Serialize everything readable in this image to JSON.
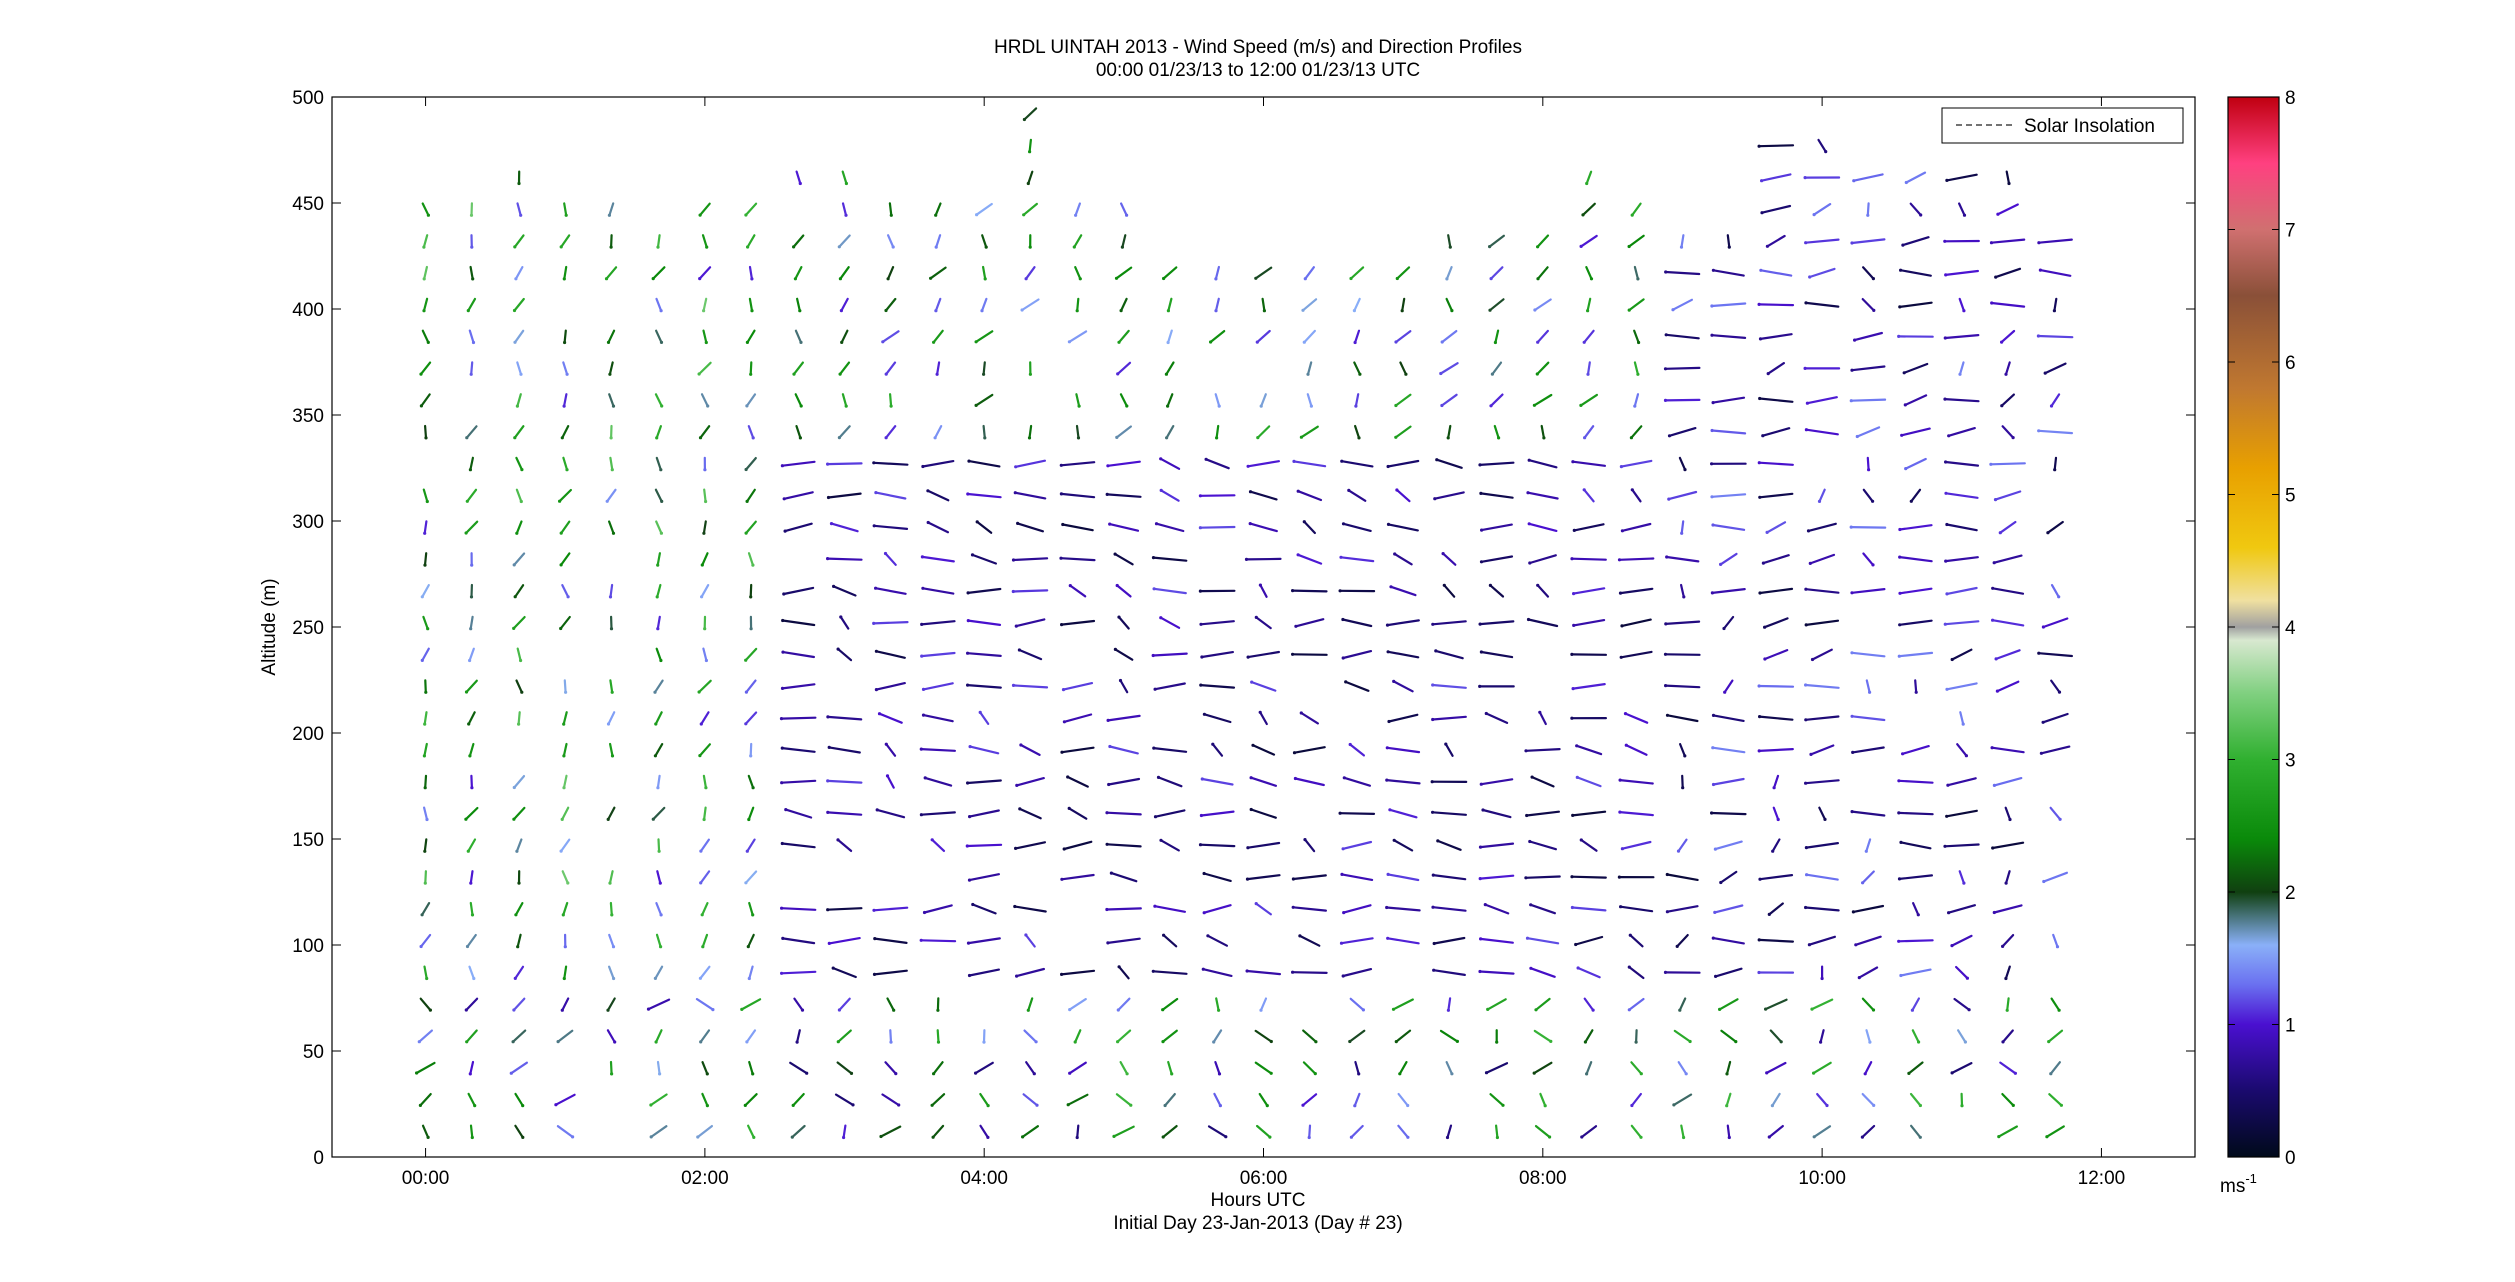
{
  "chart_data": {
    "type": "scatter",
    "subtype": "wind-barb-profile",
    "title": "HRDL UINTAH 2013 - Wind Speed (m/s) and Direction Profiles",
    "subtitle": "00:00 01/23/13 to 12:00 01/23/13  UTC",
    "xlabel": "Hours UTC",
    "xlabel2": "Initial Day 23-Jan-2013 (Day # 23)",
    "ylabel": "Altitude (m)",
    "xlim": [
      -0.67,
      12.67
    ],
    "ylim": [
      0,
      500
    ],
    "x_ticks": [
      0,
      2,
      4,
      6,
      8,
      10,
      12
    ],
    "x_tick_labels": [
      "00:00",
      "02:00",
      "04:00",
      "06:00",
      "08:00",
      "10:00",
      "12:00"
    ],
    "y_ticks": [
      0,
      50,
      100,
      150,
      200,
      250,
      300,
      350,
      400,
      450,
      500
    ],
    "y_tick_labels": [
      "0",
      "50",
      "100",
      "150",
      "200",
      "250",
      "300",
      "350",
      "400",
      "450",
      "500"
    ],
    "legend": {
      "entries": [
        "Solar Insolation"
      ],
      "position": "top-right",
      "style": "dashed"
    },
    "colorbar": {
      "range": [
        0,
        8
      ],
      "ticks": [
        0,
        1,
        2,
        3,
        4,
        5,
        6,
        7,
        8
      ],
      "tick_labels": [
        "0",
        "1",
        "2",
        "3",
        "4",
        "5",
        "6",
        "7",
        "8"
      ],
      "unit_label": "ms",
      "unit_exponent": "-1",
      "colormap": [
        [
          0.0,
          "#000a1a"
        ],
        [
          0.5,
          "#1a0a6e"
        ],
        [
          1.0,
          "#4a10d0"
        ],
        [
          1.3,
          "#6a70f0"
        ],
        [
          1.6,
          "#8ab0f8"
        ],
        [
          2.0,
          "#104010"
        ],
        [
          2.4,
          "#0a8a0a"
        ],
        [
          3.0,
          "#30b030"
        ],
        [
          3.5,
          "#80d080"
        ],
        [
          3.9,
          "#d8e8d0"
        ],
        [
          4.0,
          "#a0a0a0"
        ],
        [
          4.2,
          "#f0e0a0"
        ],
        [
          4.6,
          "#f0c810"
        ],
        [
          5.2,
          "#e8a000"
        ],
        [
          5.8,
          "#c07830"
        ],
        [
          6.5,
          "#8a5038"
        ],
        [
          7.0,
          "#d07070"
        ],
        [
          7.5,
          "#ff4080"
        ],
        [
          8.0,
          "#c00010"
        ]
      ]
    },
    "profiles": [
      {
        "t": 0.0,
        "lo": 12,
        "hi": 460
      },
      {
        "t": 0.33,
        "lo": 12,
        "hi": 450
      },
      {
        "t": 0.67,
        "lo": 12,
        "hi": 465
      },
      {
        "t": 1.0,
        "lo": 12,
        "hi": 450
      },
      {
        "t": 1.33,
        "lo": 12,
        "hi": 455
      },
      {
        "t": 1.67,
        "lo": 12,
        "hi": 445
      },
      {
        "t": 2.0,
        "lo": 12,
        "hi": 455
      },
      {
        "t": 2.33,
        "lo": 12,
        "hi": 455
      },
      {
        "t": 2.67,
        "lo": 12,
        "hi": 470
      },
      {
        "t": 3.0,
        "lo": 12,
        "hi": 470
      },
      {
        "t": 3.33,
        "lo": 12,
        "hi": 460
      },
      {
        "t": 3.67,
        "lo": 12,
        "hi": 460
      },
      {
        "t": 4.0,
        "lo": 12,
        "hi": 455
      },
      {
        "t": 4.33,
        "lo": 12,
        "hi": 495
      },
      {
        "t": 4.67,
        "lo": 12,
        "hi": 455
      },
      {
        "t": 5.0,
        "lo": 12,
        "hi": 450
      },
      {
        "t": 5.33,
        "lo": 12,
        "hi": 420
      },
      {
        "t": 5.67,
        "lo": 12,
        "hi": 420
      },
      {
        "t": 6.0,
        "lo": 12,
        "hi": 420
      },
      {
        "t": 6.33,
        "lo": 12,
        "hi": 420
      },
      {
        "t": 6.67,
        "lo": 12,
        "hi": 420
      },
      {
        "t": 7.0,
        "lo": 12,
        "hi": 420
      },
      {
        "t": 7.33,
        "lo": 12,
        "hi": 435
      },
      {
        "t": 7.67,
        "lo": 12,
        "hi": 435
      },
      {
        "t": 8.0,
        "lo": 12,
        "hi": 435
      },
      {
        "t": 8.33,
        "lo": 12,
        "hi": 470
      },
      {
        "t": 8.67,
        "lo": 12,
        "hi": 450
      },
      {
        "t": 9.0,
        "lo": 12,
        "hi": 440
      },
      {
        "t": 9.33,
        "lo": 12,
        "hi": 440
      },
      {
        "t": 9.67,
        "lo": 12,
        "hi": 490
      },
      {
        "t": 10.0,
        "lo": 12,
        "hi": 490
      },
      {
        "t": 10.33,
        "lo": 12,
        "hi": 475
      },
      {
        "t": 10.67,
        "lo": 12,
        "hi": 470
      },
      {
        "t": 11.0,
        "lo": 12,
        "hi": 465
      },
      {
        "t": 11.33,
        "lo": 12,
        "hi": 470
      },
      {
        "t": 11.67,
        "lo": 12,
        "hi": 440
      }
    ],
    "range_gate_m": 15,
    "regime": [
      {
        "t0": -0.5,
        "t1": 3.2,
        "z0": 20,
        "z1": 500,
        "dir": 95,
        "dir_spread": 15,
        "speed": 2.2,
        "speed_spread": 1.2
      },
      {
        "t0": 2.6,
        "t1": 9.5,
        "z0": 30,
        "z1": 330,
        "dir": 200,
        "dir_spread": 60,
        "speed": 0.7,
        "speed_spread": 0.5
      },
      {
        "t0": 3.2,
        "t1": 9.0,
        "z0": 330,
        "z1": 500,
        "dir": 100,
        "dir_spread": 20,
        "speed": 2.0,
        "speed_spread": 1.0
      },
      {
        "t0": 9.0,
        "t1": 12.5,
        "z0": 20,
        "z1": 500,
        "dir": 140,
        "dir_spread": 70,
        "speed": 0.8,
        "speed_spread": 0.6
      },
      {
        "t0": -0.5,
        "t1": 12.5,
        "z0": 0,
        "z1": 80,
        "dir": 95,
        "dir_spread": 35,
        "speed": 1.8,
        "speed_spread": 1.3
      }
    ]
  }
}
